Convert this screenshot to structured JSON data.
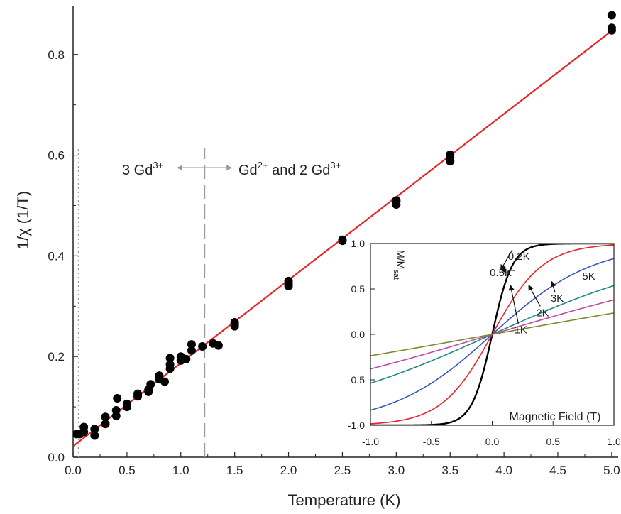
{
  "chart_data": [
    {
      "type": "scatter",
      "xlabel": "Temperature (K)",
      "ylabel": "1/χ (1/T)",
      "xlim": [
        0.0,
        5.0
      ],
      "ylim": [
        0.0,
        0.9
      ],
      "xticks": [
        "0.0",
        "0.5",
        "1.0",
        "1.5",
        "2.0",
        "2.5",
        "3.0",
        "3.5",
        "4.0",
        "4.5",
        "5.0"
      ],
      "yticks": [
        "0.0",
        "0.2",
        "0.4",
        "0.6",
        "0.8"
      ],
      "grid": false,
      "colors": {
        "points": "#000000",
        "fit": "#e8242a",
        "marker_lines": "#999999"
      },
      "series": [
        {
          "kind": "points",
          "points": [
            [
              0.03,
              0.046
            ],
            [
              0.06,
              0.046
            ],
            [
              0.1,
              0.05
            ],
            [
              0.1,
              0.06
            ],
            [
              0.2,
              0.043
            ],
            [
              0.2,
              0.056
            ],
            [
              0.3,
              0.066
            ],
            [
              0.3,
              0.08
            ],
            [
              0.4,
              0.082
            ],
            [
              0.4,
              0.093
            ],
            [
              0.41,
              0.117
            ],
            [
              0.5,
              0.1
            ],
            [
              0.5,
              0.106
            ],
            [
              0.6,
              0.126
            ],
            [
              0.6,
              0.121
            ],
            [
              0.7,
              0.13
            ],
            [
              0.7,
              0.134
            ],
            [
              0.72,
              0.145
            ],
            [
              0.8,
              0.155
            ],
            [
              0.8,
              0.162
            ],
            [
              0.85,
              0.15
            ],
            [
              0.9,
              0.176
            ],
            [
              0.9,
              0.184
            ],
            [
              0.9,
              0.197
            ],
            [
              1.0,
              0.192
            ],
            [
              1.0,
              0.2
            ],
            [
              1.05,
              0.195
            ],
            [
              1.1,
              0.212
            ],
            [
              1.1,
              0.224
            ],
            [
              1.2,
              0.22
            ],
            [
              1.3,
              0.226
            ],
            [
              1.35,
              0.222
            ],
            [
              1.5,
              0.26
            ],
            [
              1.5,
              0.265
            ],
            [
              1.5,
              0.268
            ],
            [
              2.0,
              0.34
            ],
            [
              2.0,
              0.345
            ],
            [
              2.0,
              0.35
            ],
            [
              2.5,
              0.43
            ],
            [
              2.5,
              0.432
            ],
            [
              3.0,
              0.502
            ],
            [
              3.0,
              0.508
            ],
            [
              3.0,
              0.51
            ],
            [
              3.5,
              0.588
            ],
            [
              3.5,
              0.595
            ],
            [
              3.5,
              0.601
            ],
            [
              5.0,
              0.848
            ],
            [
              5.0,
              0.853
            ],
            [
              5.0,
              0.878
            ]
          ]
        },
        {
          "kind": "line",
          "points": [
            [
              0.0,
              0.022
            ],
            [
              5.0,
              0.847
            ]
          ]
        }
      ],
      "vertical_markers": [
        {
          "x": 0.05,
          "style": "dotted",
          "ymax": 0.615
        },
        {
          "x": 1.22,
          "style": "dashed",
          "ymax": 0.615
        }
      ],
      "annotations": {
        "left_region": {
          "base": "3 Gd",
          "sup": "3+"
        },
        "right_region": {
          "base1": "Gd",
          "sup1": "2+",
          "mid": " and 2 Gd",
          "sup2": "3+"
        },
        "arrow_x": 1.22,
        "arrow_y": 0.575
      }
    },
    {
      "type": "line",
      "title": "M/M",
      "title_subscript": "sat",
      "xlabel": "Magnetic Field (T)",
      "xlim": [
        -1.0,
        1.0
      ],
      "ylim": [
        -1.0,
        1.0
      ],
      "xticks": [
        "-1.0",
        "-0.5",
        "0.0",
        "0.5",
        "1.0"
      ],
      "yticks": [
        "1.0",
        "0.5",
        "0.0",
        "-0.5",
        "-1.0"
      ],
      "series": [
        {
          "name": "0.2K",
          "T": 0.2,
          "color": "#000000"
        },
        {
          "name": "0.5K",
          "T": 0.5,
          "color": "#e8242a"
        },
        {
          "name": "1K",
          "T": 1,
          "color": "#3a57b8"
        },
        {
          "name": "2K",
          "T": 2,
          "color": "#1f8a86"
        },
        {
          "name": "3K",
          "T": 3,
          "color": "#c04aa8"
        },
        {
          "name": "5K",
          "T": 5,
          "color": "#7f8a2a"
        }
      ],
      "curve_labels": [
        {
          "text": "0.2K",
          "x": 0.13,
          "y": 0.82,
          "arrow_to": [
            0.07,
            0.71
          ]
        },
        {
          "text": "0.5K",
          "x": -0.02,
          "y": 0.64,
          "arrow_to": [
            0.07,
            0.71
          ]
        },
        {
          "text": "1K",
          "x": 0.18,
          "y": 0.01,
          "arrow_to": [
            0.15,
            0.54
          ]
        },
        {
          "text": "2K",
          "x": 0.36,
          "y": 0.2,
          "arrow_to": [
            0.3,
            0.54
          ]
        },
        {
          "text": "3K",
          "x": 0.48,
          "y": 0.36,
          "arrow_to": [
            0.49,
            0.58
          ]
        },
        {
          "text": "5K",
          "x": 0.74,
          "y": 0.6
        }
      ]
    }
  ]
}
